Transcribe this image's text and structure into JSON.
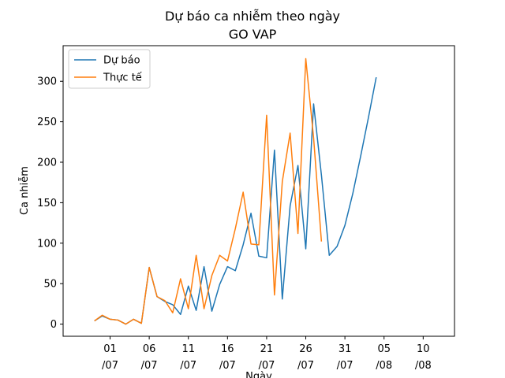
{
  "chart_data": {
    "type": "line",
    "title": "Dự báo ca nhiễm theo ngày",
    "subtitle": "GO VAP",
    "xlabel": "Ngày",
    "ylabel": "Ca nhiễm",
    "xlim": [
      "2021-06-25",
      "2021-08-14"
    ],
    "ylim": [
      -15,
      344
    ],
    "x_ticks": [
      {
        "date": "2021-07-01",
        "label": [
          "01",
          "/07"
        ]
      },
      {
        "date": "2021-07-06",
        "label": [
          "06",
          "/07"
        ]
      },
      {
        "date": "2021-07-11",
        "label": [
          "11",
          "/07"
        ]
      },
      {
        "date": "2021-07-16",
        "label": [
          "16",
          "/07"
        ]
      },
      {
        "date": "2021-07-21",
        "label": [
          "21",
          "/07"
        ]
      },
      {
        "date": "2021-07-26",
        "label": [
          "26",
          "/07"
        ]
      },
      {
        "date": "2021-07-31",
        "label": [
          "31",
          "/07"
        ]
      },
      {
        "date": "2021-08-05",
        "label": [
          "05",
          "/08"
        ]
      },
      {
        "date": "2021-08-10",
        "label": [
          "10",
          "/08"
        ]
      }
    ],
    "y_ticks": [
      0,
      50,
      100,
      150,
      200,
      250,
      300
    ],
    "grid": false,
    "legend_position": "top-left",
    "series": [
      {
        "name": "Dự báo",
        "color": "#1f77b4",
        "x": [
          "2021-06-29",
          "2021-06-30",
          "2021-07-01",
          "2021-07-02",
          "2021-07-03",
          "2021-07-04",
          "2021-07-05",
          "2021-07-06",
          "2021-07-07",
          "2021-07-08",
          "2021-07-09",
          "2021-07-10",
          "2021-07-11",
          "2021-07-12",
          "2021-07-13",
          "2021-07-14",
          "2021-07-15",
          "2021-07-16",
          "2021-07-17",
          "2021-07-18",
          "2021-07-19",
          "2021-07-20",
          "2021-07-21",
          "2021-07-22",
          "2021-07-23",
          "2021-07-24",
          "2021-07-25",
          "2021-07-26",
          "2021-07-27",
          "2021-07-28",
          "2021-07-29",
          "2021-07-30",
          "2021-07-31",
          "2021-08-01",
          "2021-08-02",
          "2021-08-03",
          "2021-08-04"
        ],
        "values": [
          4,
          10,
          6,
          5,
          0,
          6,
          1,
          70,
          34,
          28,
          24,
          12,
          47,
          17,
          71,
          16,
          49,
          71,
          66,
          98,
          137,
          84,
          82,
          215,
          31,
          146,
          196,
          93,
          272,
          184,
          85,
          96,
          122,
          161,
          207,
          255,
          305
        ]
      },
      {
        "name": "Thực tế",
        "color": "#ff7f0e",
        "x": [
          "2021-06-29",
          "2021-06-30",
          "2021-07-01",
          "2021-07-02",
          "2021-07-03",
          "2021-07-04",
          "2021-07-05",
          "2021-07-06",
          "2021-07-07",
          "2021-07-08",
          "2021-07-09",
          "2021-07-10",
          "2021-07-11",
          "2021-07-12",
          "2021-07-13",
          "2021-07-14",
          "2021-07-15",
          "2021-07-16",
          "2021-07-17",
          "2021-07-18",
          "2021-07-19",
          "2021-07-20",
          "2021-07-21",
          "2021-07-22",
          "2021-07-23",
          "2021-07-24",
          "2021-07-25",
          "2021-07-26",
          "2021-07-27",
          "2021-07-28"
        ],
        "values": [
          4,
          11,
          6,
          5,
          0,
          6,
          1,
          70,
          34,
          29,
          14,
          56,
          19,
          85,
          19,
          60,
          85,
          78,
          118,
          163,
          99,
          98,
          258,
          36,
          176,
          236,
          112,
          328,
          230,
          102
        ]
      }
    ]
  }
}
